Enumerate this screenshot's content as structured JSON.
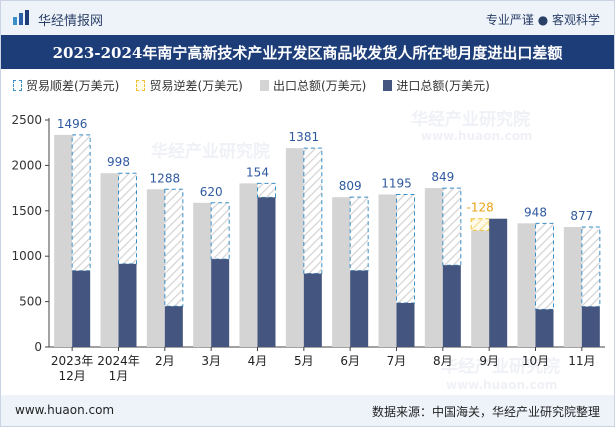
{
  "header": {
    "brand": "华经情报网",
    "slogan": "专业严谨 ● 客观科学",
    "title": "2023-2024年南宁高新技术产业开发区商品收发货人所在地月度进出口差额"
  },
  "footer": {
    "site": "www.huaon.com",
    "source": "数据来源：中国海关，华经产业研究院整理"
  },
  "colors": {
    "export": "#d4d4d4",
    "import": "#44557f",
    "surplus": "#3a8fc7",
    "deficit": "#f0c030",
    "label_surplus": "#2f5aa0",
    "label_deficit": "#e8a317"
  },
  "chart_data": {
    "type": "bar",
    "title": "2023-2024年南宁高新技术产业开发区商品收发货人所在地月度进出口差额",
    "categories": [
      "2023年\n12月",
      "2024年\n1月",
      "2月",
      "3月",
      "4月",
      "5月",
      "6月",
      "7月",
      "8月",
      "9月",
      "10月",
      "11月"
    ],
    "legend": [
      "贸易顺差(万美元)",
      "贸易逆差(万美元)",
      "出口总额(万美元)",
      "进口总额(万美元)"
    ],
    "series": [
      {
        "name": "出口总额(万美元)",
        "values": [
          2336,
          1914,
          1737,
          1588,
          1802,
          2190,
          1650,
          1680,
          1750,
          1285,
          1362,
          1322
        ]
      },
      {
        "name": "进口总额(万美元)",
        "values": [
          840,
          916,
          449,
          968,
          1648,
          809,
          841,
          485,
          901,
          1413,
          414,
          445
        ]
      },
      {
        "name": "差额(万美元)",
        "values": [
          1496,
          998,
          1288,
          620,
          154,
          1381,
          809,
          1195,
          849,
          -128,
          948,
          877
        ]
      }
    ],
    "ylim": [
      0,
      2500
    ],
    "yticks": [
      0,
      500,
      1000,
      1500,
      2000,
      2500
    ],
    "xlabel": "",
    "ylabel": "",
    "grid": false,
    "legend_position": "top",
    "watermarks": [
      "华经产业研究院",
      "www.huaon.com"
    ]
  }
}
